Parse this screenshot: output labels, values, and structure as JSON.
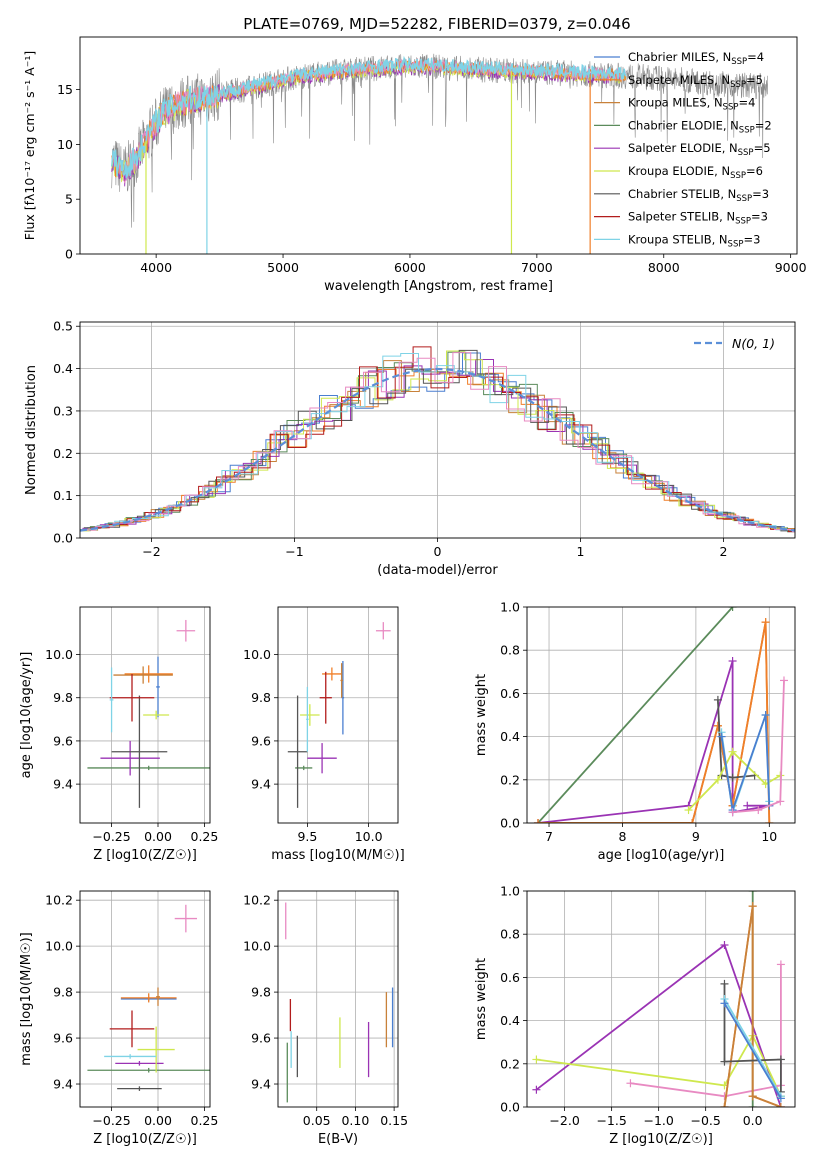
{
  "title": "PLATE=0769, MJD=52282, FIBERID=0379, z=0.046",
  "colors": {
    "Chabrier MILES": "#4a7fd0",
    "Salpeter MILES": "#f07f29",
    "Kroupa MILES": "#c8813a",
    "Chabrier ELODIE": "#5b8b5b",
    "Salpeter ELODIE": "#9a33b4",
    "Kroupa ELODIE": "#cfe84e",
    "Chabrier STELIB": "#555555",
    "Salpeter STELIB": "#b21c1c",
    "Kroupa STELIB": "#7fd3e6",
    "data": "#8a8a8a",
    "pink": "#e88ac2",
    "gaussian": "#5b8fd8"
  },
  "chart_data": [
    {
      "type": "line",
      "id": "spectrum",
      "xlabel": "wavelength [Angstrom, rest frame]",
      "ylabel": "Flux [fλ10⁻¹⁷ erg cm⁻² s⁻¹ A⁻¹]",
      "xlim": [
        3400,
        9050
      ],
      "ylim": [
        0,
        19.8
      ],
      "xticks": [
        4000,
        5000,
        6000,
        7000,
        8000,
        9000
      ],
      "yticks": [
        0,
        5,
        10,
        15
      ],
      "continuum": {
        "x": [
          3650,
          3750,
          3850,
          3950,
          4050,
          4200,
          4400,
          4600,
          4800,
          5000,
          5200,
          5400,
          5600,
          5800,
          6000,
          6200,
          6400,
          6600,
          6800,
          7000,
          7200,
          7400,
          7600,
          7800,
          8000,
          8200,
          8400,
          8600,
          8800
        ],
        "y": [
          8.5,
          7.5,
          8.8,
          11.0,
          12.8,
          13.8,
          14.3,
          14.8,
          15.3,
          15.9,
          16.3,
          16.6,
          16.8,
          17.0,
          17.1,
          17.1,
          16.9,
          16.8,
          16.7,
          16.6,
          16.5,
          16.4,
          16.3,
          16.2,
          16.0,
          15.8,
          15.6,
          15.4,
          15.3
        ]
      },
      "legend": [
        {
          "label": "Chabrier MILES, N",
          "sub": "SSP",
          "tail": "=4",
          "model": "Chabrier MILES"
        },
        {
          "label": "Salpeter MILES, N",
          "sub": "SSP",
          "tail": "=5",
          "model": "Salpeter MILES"
        },
        {
          "label": "Kroupa MILES, N",
          "sub": "SSP",
          "tail": "=4",
          "model": "Kroupa MILES"
        },
        {
          "label": "Chabrier ELODIE, N",
          "sub": "SSP",
          "tail": "=2",
          "model": "Chabrier ELODIE"
        },
        {
          "label": "Salpeter ELODIE, N",
          "sub": "SSP",
          "tail": "=5",
          "model": "Salpeter ELODIE"
        },
        {
          "label": "Kroupa ELODIE, N",
          "sub": "SSP",
          "tail": "=6",
          "model": "Kroupa ELODIE"
        },
        {
          "label": "Chabrier STELIB, N",
          "sub": "SSP",
          "tail": "=3",
          "model": "Chabrier STELIB"
        },
        {
          "label": "Salpeter STELIB, N",
          "sub": "SSP",
          "tail": "=3",
          "model": "Salpeter STELIB"
        },
        {
          "label": "Kroupa STELIB, N",
          "sub": "SSP",
          "tail": "=3",
          "model": "Kroupa STELIB"
        }
      ]
    },
    {
      "type": "line",
      "id": "histogram",
      "xlabel": "(data-model)/error",
      "ylabel": "Normed distribution",
      "xlim": [
        -2.5,
        2.5
      ],
      "ylim": [
        0,
        0.51
      ],
      "xticks": [
        -2,
        -1,
        0,
        1,
        2
      ],
      "yticks": [
        0.0,
        0.1,
        0.2,
        0.3,
        0.4,
        0.5
      ],
      "legend": "N(0, 1)",
      "bins": 40
    },
    {
      "type": "scatter",
      "id": "age_vs_Z",
      "xlabel": "Z [log10(Z/Z☉)]",
      "ylabel": "age [log10(age/yr)]",
      "xlim": [
        -0.42,
        0.28
      ],
      "ylim": [
        9.22,
        10.22
      ],
      "xticks": [
        -0.25,
        0.0,
        0.25
      ],
      "yticks": [
        9.4,
        9.6,
        9.8,
        10.0
      ],
      "points": [
        {
          "model": "Chabrier MILES",
          "x": 0.0,
          "y": 9.85,
          "xerr": 0.01,
          "yerr": 0.14
        },
        {
          "model": "Salpeter MILES",
          "x": -0.05,
          "y": 9.91,
          "xerr": 0.13,
          "yerr": 0.04
        },
        {
          "model": "Kroupa MILES",
          "x": -0.08,
          "y": 9.905,
          "xerr": 0.16,
          "yerr": 0.04
        },
        {
          "model": "Chabrier ELODIE",
          "x": -0.05,
          "y": 9.475,
          "xerr": 0.33,
          "yerr": 0.01
        },
        {
          "model": "Salpeter ELODIE",
          "x": -0.15,
          "y": 9.52,
          "xerr": 0.16,
          "yerr": 0.08
        },
        {
          "model": "Kroupa ELODIE",
          "x": -0.01,
          "y": 9.72,
          "xerr": 0.07,
          "yerr": 0.02
        },
        {
          "model": "Chabrier STELIB",
          "x": -0.1,
          "y": 9.55,
          "xerr": 0.15,
          "yerr": 0.26
        },
        {
          "model": "Salpeter STELIB",
          "x": -0.14,
          "y": 9.8,
          "xerr": 0.12,
          "yerr": 0.11
        },
        {
          "model": "Kroupa STELIB",
          "x": -0.25,
          "y": 9.79,
          "xerr": 0.01,
          "yerr": 0.15
        },
        {
          "model": "pink",
          "x": 0.15,
          "y": 10.11,
          "xerr": 0.05,
          "yerr": 0.05
        }
      ]
    },
    {
      "type": "scatter",
      "id": "age_vs_mass",
      "xlabel": "mass [log10(M/M☉)]",
      "ylabel": "",
      "xlim": [
        9.26,
        10.24
      ],
      "ylim": [
        9.22,
        10.22
      ],
      "xticks": [
        9.5,
        10.0
      ],
      "yticks": [
        9.4,
        9.6,
        9.8,
        10.0
      ],
      "points": [
        {
          "model": "Chabrier MILES",
          "x": 9.79,
          "y": 9.8,
          "xerr": 0.01,
          "yerr": 0.17
        },
        {
          "model": "Salpeter MILES",
          "x": 9.7,
          "y": 9.91,
          "xerr": 0.08,
          "yerr": 0.03
        },
        {
          "model": "Kroupa MILES",
          "x": 9.78,
          "y": 9.88,
          "xerr": 0.01,
          "yerr": 0.08
        },
        {
          "model": "Chabrier ELODIE",
          "x": 9.47,
          "y": 9.475,
          "xerr": 0.07,
          "yerr": 0.01
        },
        {
          "model": "Salpeter ELODIE",
          "x": 9.62,
          "y": 9.52,
          "xerr": 0.12,
          "yerr": 0.07
        },
        {
          "model": "Kroupa ELODIE",
          "x": 9.52,
          "y": 9.72,
          "xerr": 0.08,
          "yerr": 0.05
        },
        {
          "model": "Chabrier STELIB",
          "x": 9.42,
          "y": 9.55,
          "xerr": 0.08,
          "yerr": 0.26
        },
        {
          "model": "Salpeter STELIB",
          "x": 9.65,
          "y": 9.8,
          "xerr": 0.05,
          "yerr": 0.12
        },
        {
          "model": "Kroupa STELIB",
          "x": 9.5,
          "y": 9.7,
          "xerr": 0.01,
          "yerr": 0.15
        },
        {
          "model": "pink",
          "x": 10.12,
          "y": 10.11,
          "xerr": 0.06,
          "yerr": 0.04
        }
      ]
    },
    {
      "type": "line",
      "id": "weight_vs_age",
      "xlabel": "age [log10(age/yr)]",
      "ylabel": "mass weight",
      "xlim": [
        6.7,
        10.35
      ],
      "ylim": [
        0,
        1.0
      ],
      "xticks": [
        7,
        8,
        9,
        10
      ],
      "yticks": [
        0.0,
        0.2,
        0.4,
        0.6,
        0.8,
        1.0
      ],
      "series": [
        {
          "model": "Chabrier ELODIE",
          "x": [
            6.85,
            9.5
          ],
          "y": [
            0.0,
            1.0
          ]
        },
        {
          "model": "Salpeter ELODIE",
          "x": [
            6.85,
            8.9,
            9.5,
            9.5,
            10.0,
            9.7
          ],
          "y": [
            0.0,
            0.08,
            0.75,
            0.05,
            0.08,
            0.08
          ]
        },
        {
          "model": "Kroupa MILES",
          "x": [
            6.85,
            8.95,
            9.3,
            9.5,
            9.95,
            10.0
          ],
          "y": [
            0.0,
            0.0,
            0.45,
            0.08,
            0.93,
            0.0
          ]
        },
        {
          "model": "Salpeter MILES",
          "x": [
            6.85,
            8.95,
            9.3,
            9.5,
            9.95,
            10.0
          ],
          "y": [
            0.0,
            0.0,
            0.45,
            0.08,
            0.93,
            0.0
          ]
        },
        {
          "model": "Chabrier STELIB",
          "x": [
            9.3,
            9.35,
            9.5,
            9.8
          ],
          "y": [
            0.57,
            0.22,
            0.21,
            0.22
          ]
        },
        {
          "model": "Kroupa ELODIE",
          "x": [
            8.9,
            9.3,
            9.5,
            9.95,
            10.15
          ],
          "y": [
            0.06,
            0.2,
            0.33,
            0.18,
            0.22
          ]
        },
        {
          "model": "Kroupa STELIB",
          "x": [
            9.35,
            9.5,
            9.95,
            10.0
          ],
          "y": [
            0.42,
            0.05,
            0.5,
            0.1
          ]
        },
        {
          "model": "Chabrier MILES",
          "x": [
            9.35,
            9.5,
            9.95,
            10.0
          ],
          "y": [
            0.4,
            0.06,
            0.5,
            0.08
          ]
        },
        {
          "model": "pink",
          "x": [
            9.5,
            9.85,
            10.15,
            10.2
          ],
          "y": [
            0.05,
            0.06,
            0.1,
            0.66
          ]
        }
      ]
    },
    {
      "type": "scatter",
      "id": "mass_vs_Z",
      "xlabel": "Z [log10(Z/Z☉)]",
      "ylabel": "mass [log10(M/M☉)]",
      "xlim": [
        -0.42,
        0.28
      ],
      "ylim": [
        9.3,
        10.24
      ],
      "xticks": [
        -0.25,
        0.0,
        0.25
      ],
      "yticks": [
        9.4,
        9.6,
        9.8,
        10.0,
        10.2
      ],
      "points": [
        {
          "model": "Chabrier MILES",
          "x": -0.05,
          "y": 9.77,
          "xerr": 0.15,
          "yerr": 0.01
        },
        {
          "model": "Salpeter MILES",
          "x": -0.05,
          "y": 9.775,
          "xerr": 0.15,
          "yerr": 0.02
        },
        {
          "model": "Kroupa MILES",
          "x": 0.0,
          "y": 9.78,
          "xerr": 0.01,
          "yerr": 0.04
        },
        {
          "model": "Chabrier ELODIE",
          "x": -0.05,
          "y": 9.46,
          "xerr": 0.33,
          "yerr": 0.01
        },
        {
          "model": "Salpeter ELODIE",
          "x": -0.1,
          "y": 9.49,
          "xerr": 0.13,
          "yerr": 0.01
        },
        {
          "model": "Kroupa ELODIE",
          "x": -0.01,
          "y": 9.55,
          "xerr": 0.1,
          "yerr": 0.1
        },
        {
          "model": "Chabrier STELIB",
          "x": -0.1,
          "y": 9.38,
          "xerr": 0.12,
          "yerr": 0.01
        },
        {
          "model": "Salpeter STELIB",
          "x": -0.14,
          "y": 9.64,
          "xerr": 0.12,
          "yerr": 0.08
        },
        {
          "model": "Kroupa STELIB",
          "x": -0.15,
          "y": 9.52,
          "xerr": 0.14,
          "yerr": 0.01
        },
        {
          "model": "pink",
          "x": 0.15,
          "y": 10.12,
          "xerr": 0.06,
          "yerr": 0.06
        }
      ]
    },
    {
      "type": "scatter",
      "id": "mass_vs_EBV",
      "xlabel": "E(B-V)",
      "ylabel": "",
      "xlim": [
        0.0,
        0.155
      ],
      "ylim": [
        9.3,
        10.24
      ],
      "xticks": [
        0.05,
        0.1,
        0.15
      ],
      "yticks": [
        9.4,
        9.6,
        9.8,
        10.0,
        10.2
      ],
      "points": [
        {
          "model": "pink",
          "x": 0.01,
          "y": 10.11,
          "xerr": 0.0,
          "yerr": 0.08
        },
        {
          "model": "Chabrier ELODIE",
          "x": 0.012,
          "y": 9.45,
          "xerr": 0.0,
          "yerr": 0.13
        },
        {
          "model": "Salpeter STELIB",
          "x": 0.016,
          "y": 9.7,
          "xerr": 0.0,
          "yerr": 0.07
        },
        {
          "model": "Kroupa STELIB",
          "x": 0.017,
          "y": 9.55,
          "xerr": 0.0,
          "yerr": 0.08
        },
        {
          "model": "Chabrier STELIB",
          "x": 0.025,
          "y": 9.52,
          "xerr": 0.0,
          "yerr": 0.09
        },
        {
          "model": "Kroupa ELODIE",
          "x": 0.08,
          "y": 9.58,
          "xerr": 0.0,
          "yerr": 0.11
        },
        {
          "model": "Salpeter ELODIE",
          "x": 0.117,
          "y": 9.55,
          "xerr": 0.0,
          "yerr": 0.12
        },
        {
          "model": "Kroupa MILES",
          "x": 0.14,
          "y": 9.68,
          "xerr": 0.0,
          "yerr": 0.12
        },
        {
          "model": "Chabrier MILES",
          "x": 0.148,
          "y": 9.69,
          "xerr": 0.0,
          "yerr": 0.13
        }
      ]
    },
    {
      "type": "line",
      "id": "weight_vs_Z",
      "xlabel": "Z [log10(Z/Z☉)]",
      "ylabel": "mass weight",
      "xlim": [
        -2.4,
        0.45
      ],
      "ylim": [
        0,
        1.0
      ],
      "xticks": [
        -2.0,
        -1.5,
        -1.0,
        -0.5,
        0.0
      ],
      "yticks": [
        0.0,
        0.2,
        0.4,
        0.6,
        0.8,
        1.0
      ],
      "series": [
        {
          "model": "Salpeter ELODIE",
          "x": [
            -2.3,
            -0.3,
            0.3
          ],
          "y": [
            0.08,
            0.75,
            0.0
          ]
        },
        {
          "model": "Kroupa ELODIE",
          "x": [
            -2.3,
            -0.3,
            0.0,
            0.3
          ],
          "y": [
            0.22,
            0.1,
            0.33,
            0.05
          ]
        },
        {
          "model": "pink",
          "x": [
            -1.3,
            -0.3,
            0.3,
            0.3
          ],
          "y": [
            0.11,
            0.05,
            0.1,
            0.66
          ]
        },
        {
          "model": "Chabrier ELODIE",
          "x": [
            0.0,
            0.0
          ],
          "y": [
            0.0,
            1.0
          ]
        },
        {
          "model": "Salpeter MILES",
          "x": [
            -0.3,
            0.0,
            0.0,
            0.3
          ],
          "y": [
            0.0,
            0.93,
            0.05,
            0.0
          ]
        },
        {
          "model": "Kroupa MILES",
          "x": [
            -0.3,
            0.0,
            0.0,
            0.3
          ],
          "y": [
            0.0,
            0.93,
            0.05,
            0.0
          ]
        },
        {
          "model": "Chabrier STELIB",
          "x": [
            -0.3,
            -0.3,
            0.3,
            0.3
          ],
          "y": [
            0.57,
            0.21,
            0.22,
            0.07
          ]
        },
        {
          "model": "Kroupa STELIB",
          "x": [
            -0.3,
            0.3
          ],
          "y": [
            0.5,
            0.05
          ]
        },
        {
          "model": "Chabrier MILES",
          "x": [
            -0.3,
            0.3
          ],
          "y": [
            0.48,
            0.04
          ]
        }
      ]
    }
  ]
}
